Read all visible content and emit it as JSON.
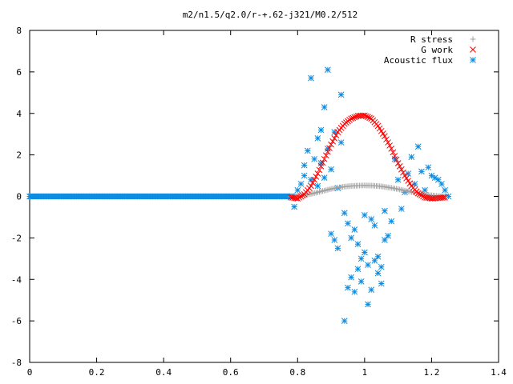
{
  "chart_data": {
    "type": "scatter",
    "title": "m2/n1.5/q2.0/r-+.62-j321/M0.2/512",
    "xlabel": "",
    "ylabel": "",
    "xlim": [
      0,
      1.4
    ],
    "ylim": [
      -8,
      8
    ],
    "x_ticks": [
      "0",
      "0.2",
      "0.4",
      "0.6",
      "0.8",
      "1",
      "1.2",
      "1.4"
    ],
    "y_ticks": [
      "8",
      "6",
      "4",
      "2",
      "0",
      "-2",
      "-4",
      "-6",
      "-8"
    ],
    "grid": false,
    "legend_position": "top-right",
    "series": [
      {
        "name": "R stress",
        "marker": "plus",
        "color": "#a0a0a0",
        "x": [
          0.78,
          0.8,
          0.82,
          0.84,
          0.86,
          0.88,
          0.9,
          0.92,
          0.94,
          0.96,
          0.98,
          1.0,
          1.02,
          1.04,
          1.06,
          1.08,
          1.1,
          1.12,
          1.14,
          1.16,
          1.18,
          1.2,
          1.22,
          1.24
        ],
        "y": [
          0.0,
          0.02,
          0.06,
          0.12,
          0.2,
          0.28,
          0.36,
          0.42,
          0.47,
          0.5,
          0.52,
          0.53,
          0.52,
          0.5,
          0.46,
          0.41,
          0.35,
          0.28,
          0.21,
          0.15,
          0.09,
          0.05,
          0.02,
          0.0
        ]
      },
      {
        "name": "G work",
        "marker": "cross",
        "color": "#ff0000",
        "x": [
          0.78,
          0.8,
          0.82,
          0.84,
          0.86,
          0.88,
          0.9,
          0.92,
          0.94,
          0.96,
          0.98,
          1.0,
          1.02,
          1.04,
          1.06,
          1.08,
          1.1,
          1.12,
          1.14,
          1.16,
          1.18,
          1.2,
          1.22,
          1.24
        ],
        "y": [
          -0.05,
          -0.1,
          0.1,
          0.5,
          1.1,
          1.8,
          2.5,
          3.1,
          3.5,
          3.75,
          3.88,
          3.9,
          3.75,
          3.4,
          2.9,
          2.3,
          1.6,
          1.0,
          0.5,
          0.15,
          -0.05,
          -0.1,
          -0.08,
          -0.05
        ]
      },
      {
        "name": "Acoustic flux",
        "marker": "star",
        "color": "#0f8ce0",
        "x": [
          0.79,
          0.8,
          0.81,
          0.82,
          0.82,
          0.83,
          0.84,
          0.84,
          0.85,
          0.86,
          0.86,
          0.87,
          0.87,
          0.88,
          0.88,
          0.89,
          0.89,
          0.9,
          0.9,
          0.91,
          0.91,
          0.92,
          0.92,
          0.93,
          0.93,
          0.94,
          0.94,
          0.95,
          0.95,
          0.96,
          0.96,
          0.97,
          0.97,
          0.98,
          0.98,
          0.99,
          0.99,
          1.0,
          1.0,
          1.01,
          1.01,
          1.02,
          1.02,
          1.03,
          1.03,
          1.04,
          1.04,
          1.05,
          1.05,
          1.06,
          1.06,
          1.07,
          1.08,
          1.09,
          1.1,
          1.11,
          1.12,
          1.13,
          1.14,
          1.15,
          1.16,
          1.17,
          1.18,
          1.19,
          1.2,
          1.21,
          1.22,
          1.23,
          1.24,
          1.25
        ],
        "y": [
          -0.5,
          0.3,
          0.6,
          1.0,
          1.5,
          2.2,
          0.8,
          5.7,
          1.8,
          2.8,
          0.5,
          1.6,
          3.2,
          4.3,
          0.9,
          2.3,
          6.1,
          1.3,
          -1.8,
          -2.1,
          3.1,
          0.4,
          -2.5,
          2.6,
          4.9,
          -6.0,
          -0.8,
          -4.4,
          -1.3,
          -3.9,
          -2.0,
          -4.6,
          -1.6,
          -3.5,
          -2.3,
          -3.0,
          -4.1,
          -0.9,
          -2.7,
          -5.2,
          -3.3,
          -4.5,
          -1.1,
          -3.1,
          -1.4,
          -3.7,
          -2.9,
          -4.2,
          -3.4,
          -2.1,
          -0.7,
          -1.9,
          -1.2,
          1.8,
          0.8,
          -0.6,
          0.2,
          1.1,
          1.9,
          0.6,
          2.4,
          1.2,
          0.3,
          1.4,
          1.0,
          0.9,
          0.8,
          0.6,
          0.3,
          0.0
        ]
      }
    ]
  }
}
